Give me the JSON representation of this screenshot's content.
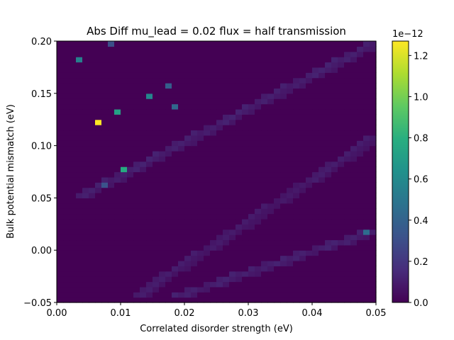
{
  "chart_data": {
    "type": "heatmap",
    "title": "Abs Diff mu_lead = 0.02 flux = half transmission",
    "xlabel": "Correlated disorder strength (eV)",
    "ylabel": "Bulk potential mismatch (eV)",
    "xlim": [
      0.0,
      0.05
    ],
    "ylim": [
      -0.05,
      0.2
    ],
    "x_ticks": [
      "0.00",
      "0.01",
      "0.02",
      "0.03",
      "0.04",
      "0.05"
    ],
    "y_ticks": [
      "−0.05",
      "0.00",
      "0.05",
      "0.10",
      "0.15",
      "0.20"
    ],
    "colormap": "viridis",
    "colorbar": {
      "range": [
        0.0,
        1.27
      ],
      "ticks": [
        "0.0",
        "0.2",
        "0.4",
        "0.6",
        "0.8",
        "1.0",
        "1.2"
      ],
      "offset_text": "1e−12",
      "units_scale": 1e-12
    },
    "grid": false,
    "grid_size": {
      "nx": 50,
      "ny": 50
    },
    "background_value": 0.0,
    "bands": [
      {
        "x0": 0.003,
        "y0": 0.05,
        "x1": 0.05,
        "y1": 0.2,
        "value": 0.12
      },
      {
        "x0": 0.012,
        "y0": -0.045,
        "x1": 0.05,
        "y1": 0.11,
        "value": 0.1
      },
      {
        "x0": 0.018,
        "y0": -0.045,
        "x1": 0.05,
        "y1": 0.02,
        "value": 0.12
      }
    ],
    "highlighted_cells": [
      {
        "x": 0.0063,
        "y": 0.1245,
        "value": 1.27
      },
      {
        "x": 0.0102,
        "y": 0.0755,
        "value": 0.78
      },
      {
        "x": 0.0093,
        "y": 0.1345,
        "value": 0.72
      },
      {
        "x": 0.0143,
        "y": 0.1495,
        "value": 0.58
      },
      {
        "x": 0.0033,
        "y": 0.1835,
        "value": 0.55
      },
      {
        "x": 0.0183,
        "y": 0.1395,
        "value": 0.42
      },
      {
        "x": 0.0485,
        "y": 0.0175,
        "value": 0.45
      },
      {
        "x": 0.0073,
        "y": 0.0645,
        "value": 0.32
      },
      {
        "x": 0.0173,
        "y": 0.1595,
        "value": 0.38
      },
      {
        "x": 0.0083,
        "y": 0.1995,
        "value": 0.3
      }
    ]
  }
}
